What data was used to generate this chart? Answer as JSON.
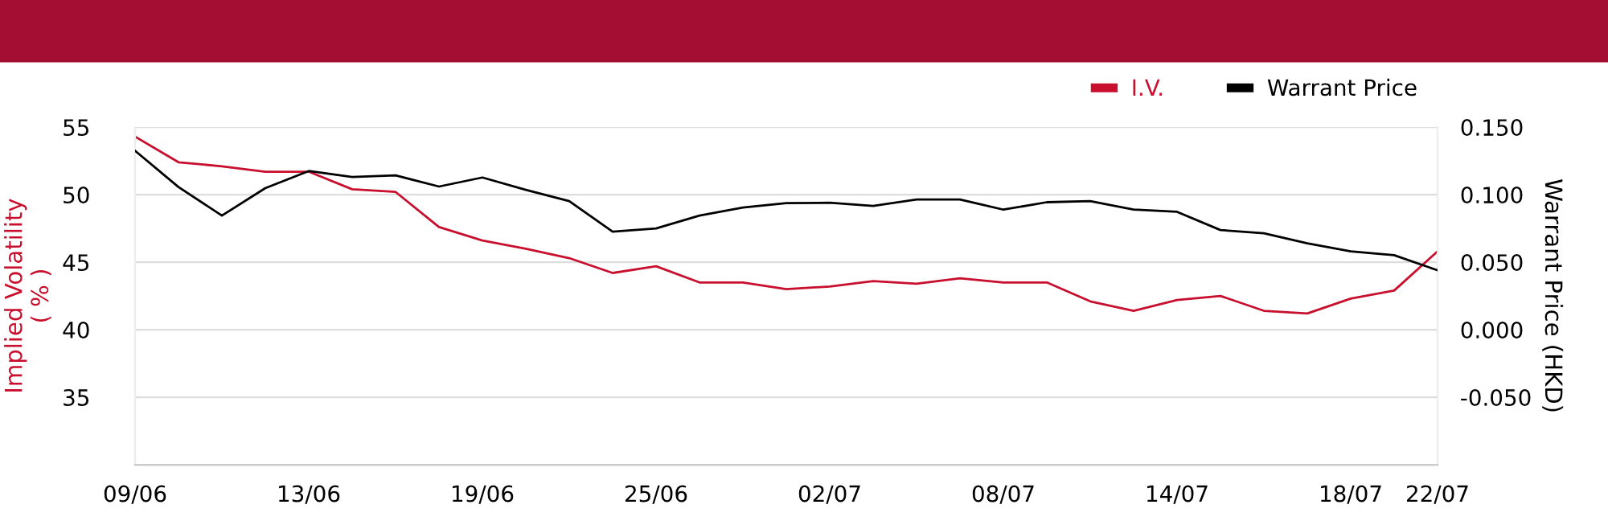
{
  "chart_data": {
    "type": "line",
    "categories": [
      "09/06",
      null,
      null,
      null,
      "13/06",
      null,
      null,
      null,
      "19/06",
      null,
      null,
      null,
      "25/06",
      null,
      null,
      null,
      "02/07",
      null,
      null,
      null,
      "08/07",
      null,
      null,
      null,
      "14/07",
      null,
      null,
      null,
      "18/07",
      null,
      "22/07"
    ],
    "series": [
      {
        "name": "I.V.",
        "color": "#c8102e",
        "values": [
          54.3,
          52.4,
          52.1,
          51.7,
          51.7,
          50.4,
          50.2,
          47.6,
          46.6,
          46.0,
          45.3,
          44.2,
          44.7,
          43.5,
          43.5,
          43.0,
          43.2,
          43.6,
          43.4,
          43.8,
          43.5,
          43.5,
          42.1,
          41.4,
          42.2,
          42.5,
          41.4,
          41.2,
          42.3,
          42.9,
          45.8
        ]
      },
      {
        "name": "Warrant Price",
        "color": "#000000",
        "axis": "y2",
        "values": [
          0.1325,
          0.1056,
          0.0845,
          0.1048,
          0.1175,
          0.1131,
          0.1143,
          0.106,
          0.1127,
          0.1036,
          0.0952,
          0.0726,
          0.075,
          0.0845,
          0.0905,
          0.0937,
          0.094,
          0.0917,
          0.0964,
          0.0964,
          0.0889,
          0.0944,
          0.0952,
          0.0889,
          0.0873,
          0.0738,
          0.0714,
          0.0639,
          0.058,
          0.0552,
          0.044
        ]
      }
    ],
    "ylabel": "Implied Volatility\n( % )",
    "y2label": "Warrant Price (HKD)",
    "ylim": [
      30,
      55
    ],
    "yticks": [
      {
        "value": 30,
        "label": null
      },
      35,
      40,
      45,
      50,
      55
    ],
    "y2lim": [
      -0.1,
      0.15
    ],
    "y2ticks": [
      {
        "value": -0.1,
        "label": null
      },
      {
        "value": -0.05,
        "label": "-0.050"
      },
      {
        "value": 0,
        "label": "0.000"
      },
      {
        "value": 0.05,
        "label": "0.050"
      },
      {
        "value": 0.1,
        "label": "0.100"
      },
      {
        "value": 0.15,
        "label": "0.150"
      }
    ],
    "grid": "y",
    "legend": "top right",
    "marker": "none",
    "line_style": "solid"
  }
}
